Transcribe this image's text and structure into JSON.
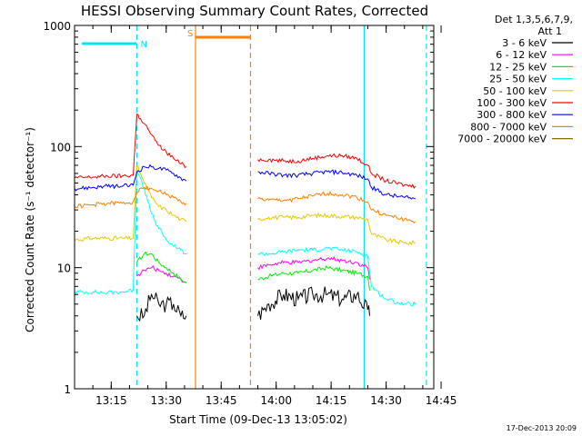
{
  "chart_data": {
    "type": "line",
    "title": "HESSI Observing Summary Count Rates, Corrected",
    "xlabel": "Start Time (09-Dec-13 13:05:02)",
    "ylabel": "Corrected Count Rate (s⁻¹ detector⁻¹)",
    "yscale": "log",
    "xlim_minutes": [
      5,
      103
    ],
    "ylim": [
      1,
      1000
    ],
    "x_ticks": [
      "13:15",
      "13:30",
      "13:45",
      "14:00",
      "14:15",
      "14:30",
      "14:45"
    ],
    "y_ticks": [
      "1",
      "10",
      "100",
      "1000"
    ],
    "legend": {
      "header": [
        "Det 1,3,5,6,7,9,",
        "Att 1"
      ],
      "placement": "right"
    },
    "timestamp": "17-Dec-2013 20:09",
    "flags": [
      {
        "label": "N",
        "color": "#00e5ff",
        "start": "13:07",
        "end": "13:22"
      },
      {
        "label": "S",
        "color": "#ff7f00",
        "start": "13:38",
        "end": "13:53"
      }
    ],
    "vlines": [
      {
        "time": "13:22",
        "color": "#00e5ff",
        "style": "dashed"
      },
      {
        "time": "13:38",
        "color": "#ff7f00",
        "style": "solid"
      },
      {
        "time": "13:53",
        "color": "#ff7f00",
        "style": "dashed"
      },
      {
        "time": "14:24",
        "color": "#00e5ff",
        "style": "solid"
      },
      {
        "time": "14:41",
        "color": "#00e5ff",
        "style": "dashed"
      }
    ],
    "time_axis_minutes_from": "13:00",
    "series": [
      {
        "name": "3 - 6 keV",
        "color": "#000000",
        "points": [
          [
            21,
            0
          ],
          [
            22,
            4
          ],
          [
            24,
            4
          ],
          [
            26,
            6
          ],
          [
            28,
            5
          ],
          [
            30,
            5
          ],
          [
            32,
            5
          ],
          [
            34,
            4
          ],
          [
            35.5,
            4
          ],
          [
            55,
            4
          ],
          [
            58,
            5
          ],
          [
            62,
            6
          ],
          [
            66,
            5.5
          ],
          [
            70,
            6
          ],
          [
            74,
            6
          ],
          [
            78,
            5.5
          ],
          [
            82,
            6
          ],
          [
            85,
            4.5
          ],
          [
            85.5,
            4
          ]
        ]
      },
      {
        "name": "6 - 12 keV",
        "color": "#ff00ff",
        "points": [
          [
            21,
            0
          ],
          [
            22,
            8.5
          ],
          [
            24,
            9.5
          ],
          [
            26,
            10
          ],
          [
            28,
            9.5
          ],
          [
            30,
            9
          ],
          [
            32,
            8.5
          ],
          [
            34,
            8
          ],
          [
            35.5,
            7.5
          ],
          [
            55,
            10
          ],
          [
            58,
            10.5
          ],
          [
            62,
            11
          ],
          [
            66,
            11
          ],
          [
            70,
            11.5
          ],
          [
            74,
            12
          ],
          [
            78,
            11.5
          ],
          [
            82,
            11
          ],
          [
            85,
            10
          ],
          [
            85.5,
            8
          ]
        ]
      },
      {
        "name": "12 - 25 keV",
        "color": "#00ee00",
        "points": [
          [
            21,
            0
          ],
          [
            22,
            11
          ],
          [
            24,
            13
          ],
          [
            26,
            13
          ],
          [
            28,
            11
          ],
          [
            30,
            10
          ],
          [
            32,
            9
          ],
          [
            34,
            8
          ],
          [
            35.5,
            7.5
          ],
          [
            55,
            8
          ],
          [
            58,
            8.5
          ],
          [
            62,
            9
          ],
          [
            66,
            9
          ],
          [
            70,
            9.5
          ],
          [
            74,
            10
          ],
          [
            78,
            9.5
          ],
          [
            82,
            9
          ],
          [
            85,
            8.5
          ],
          [
            85.5,
            6.5
          ]
        ]
      },
      {
        "name": "25 - 50 keV",
        "color": "#00ffff",
        "points": [
          [
            5,
            6.3
          ],
          [
            10,
            6.3
          ],
          [
            14,
            6.2
          ],
          [
            18,
            6.3
          ],
          [
            21,
            6.5
          ],
          [
            22,
            65
          ],
          [
            23,
            55
          ],
          [
            24,
            45
          ],
          [
            25,
            35
          ],
          [
            26,
            28
          ],
          [
            27,
            24
          ],
          [
            28,
            21
          ],
          [
            29,
            19
          ],
          [
            30,
            17
          ],
          [
            32,
            15
          ],
          [
            34,
            14
          ],
          [
            35.5,
            13
          ],
          [
            55,
            13
          ],
          [
            58,
            13
          ],
          [
            62,
            13.5
          ],
          [
            66,
            14
          ],
          [
            70,
            14
          ],
          [
            74,
            14.5
          ],
          [
            78,
            14
          ],
          [
            82,
            13.5
          ],
          [
            85,
            12.5
          ],
          [
            86,
            7
          ],
          [
            90,
            5.5
          ],
          [
            95,
            5
          ],
          [
            98,
            5
          ]
        ]
      },
      {
        "name": "50 - 100 keV",
        "color": "#e8c800",
        "points": [
          [
            5,
            17
          ],
          [
            10,
            17.5
          ],
          [
            14,
            17.5
          ],
          [
            18,
            17.5
          ],
          [
            21,
            17.5
          ],
          [
            22,
            70
          ],
          [
            23,
            60
          ],
          [
            24,
            50
          ],
          [
            25,
            44
          ],
          [
            26,
            38
          ],
          [
            27,
            35
          ],
          [
            28,
            32
          ],
          [
            30,
            30
          ],
          [
            32,
            27
          ],
          [
            34,
            25
          ],
          [
            35.5,
            24
          ],
          [
            55,
            25
          ],
          [
            58,
            26
          ],
          [
            62,
            26
          ],
          [
            66,
            26
          ],
          [
            70,
            27
          ],
          [
            74,
            27
          ],
          [
            78,
            26.5
          ],
          [
            82,
            26
          ],
          [
            85,
            25
          ],
          [
            86,
            19
          ],
          [
            90,
            17
          ],
          [
            95,
            16
          ],
          [
            98,
            16
          ]
        ]
      },
      {
        "name": "100 - 300 keV",
        "color": "#ff0000",
        "points": [
          [
            5,
            55
          ],
          [
            10,
            56
          ],
          [
            14,
            57
          ],
          [
            18,
            57
          ],
          [
            21,
            58
          ],
          [
            22,
            185
          ],
          [
            23,
            170
          ],
          [
            24,
            155
          ],
          [
            25,
            140
          ],
          [
            26,
            125
          ],
          [
            27,
            112
          ],
          [
            28,
            102
          ],
          [
            30,
            90
          ],
          [
            32,
            80
          ],
          [
            34,
            72
          ],
          [
            35.5,
            68
          ],
          [
            55,
            78
          ],
          [
            58,
            78
          ],
          [
            62,
            76
          ],
          [
            66,
            76
          ],
          [
            70,
            80
          ],
          [
            74,
            84
          ],
          [
            78,
            84
          ],
          [
            82,
            80
          ],
          [
            85,
            70
          ],
          [
            86,
            60
          ],
          [
            90,
            52
          ],
          [
            95,
            48
          ],
          [
            98,
            47
          ]
        ]
      },
      {
        "name": "300 - 800 keV",
        "color": "#0000ff",
        "points": [
          [
            5,
            45
          ],
          [
            10,
            46
          ],
          [
            14,
            47
          ],
          [
            18,
            47
          ],
          [
            21,
            48
          ],
          [
            22,
            62
          ],
          [
            24,
            68
          ],
          [
            26,
            68
          ],
          [
            28,
            66
          ],
          [
            30,
            64
          ],
          [
            32,
            60
          ],
          [
            34,
            55
          ],
          [
            35.5,
            52
          ],
          [
            55,
            62
          ],
          [
            58,
            60
          ],
          [
            62,
            58
          ],
          [
            66,
            58
          ],
          [
            70,
            60
          ],
          [
            74,
            62
          ],
          [
            78,
            61
          ],
          [
            82,
            58
          ],
          [
            85,
            54
          ],
          [
            86,
            46
          ],
          [
            90,
            40
          ],
          [
            95,
            38
          ],
          [
            98,
            37
          ]
        ]
      },
      {
        "name": "800 - 7000 keV",
        "color": "#ff7f00",
        "points": [
          [
            5,
            32
          ],
          [
            10,
            33
          ],
          [
            14,
            34
          ],
          [
            18,
            34
          ],
          [
            21,
            35
          ],
          [
            22,
            42
          ],
          [
            24,
            46
          ],
          [
            26,
            45
          ],
          [
            28,
            43
          ],
          [
            30,
            40
          ],
          [
            32,
            38
          ],
          [
            34,
            35
          ],
          [
            35.5,
            34
          ],
          [
            55,
            37
          ],
          [
            58,
            36
          ],
          [
            62,
            36
          ],
          [
            66,
            37
          ],
          [
            70,
            39
          ],
          [
            74,
            41
          ],
          [
            78,
            40
          ],
          [
            82,
            38
          ],
          [
            85,
            35
          ],
          [
            86,
            30
          ],
          [
            90,
            27
          ],
          [
            95,
            25
          ],
          [
            98,
            24
          ]
        ]
      },
      {
        "name": "7000 - 20000 keV",
        "color": "#8b6d00",
        "points": [
          [
            5,
            1
          ],
          [
            98,
            1
          ]
        ]
      }
    ]
  }
}
